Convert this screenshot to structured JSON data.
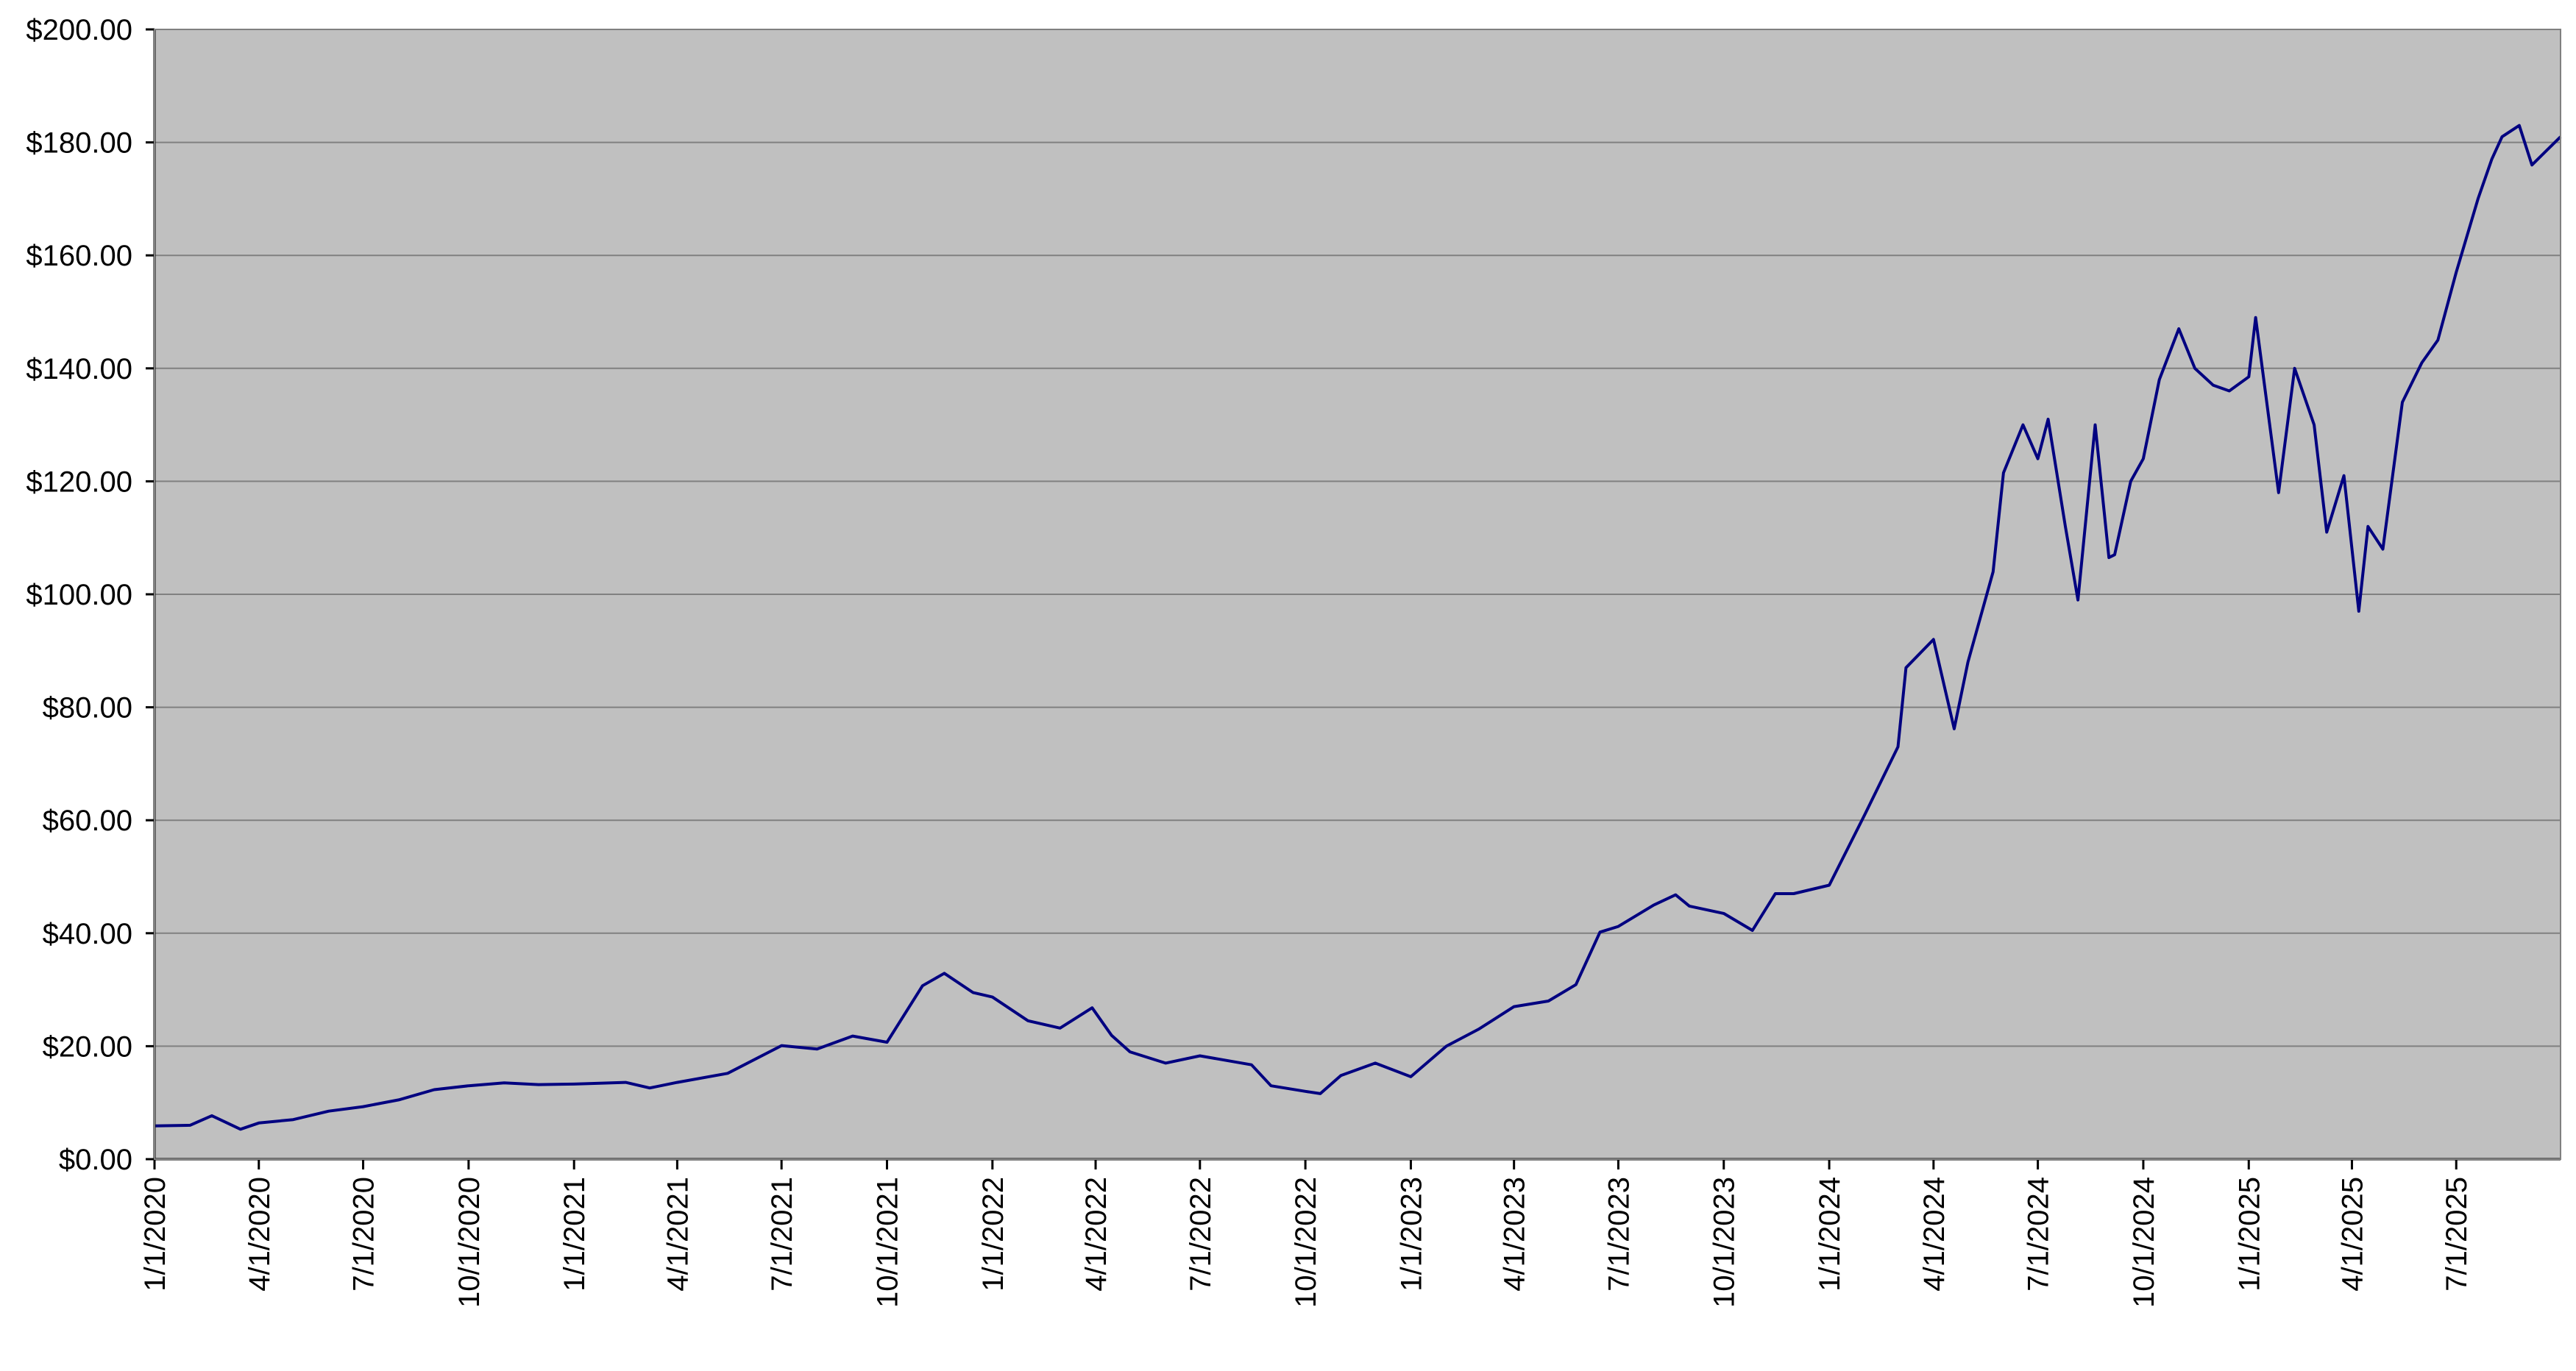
{
  "chart_data": {
    "type": "line",
    "title": "",
    "xlabel": "",
    "ylabel": "",
    "ylim": [
      0,
      200
    ],
    "xlim": [
      "2020-01-01",
      "2025-09-30"
    ],
    "grid": true,
    "legend": "none",
    "y_ticks": [
      0,
      20,
      40,
      60,
      80,
      100,
      120,
      140,
      160,
      180,
      200
    ],
    "y_tick_labels": [
      "$0.00",
      "$20.00",
      "$40.00",
      "$60.00",
      "$80.00",
      "$100.00",
      "$120.00",
      "$140.00",
      "$160.00",
      "$180.00",
      "$200.00"
    ],
    "x_tick_dates": [
      "2020-01-01",
      "2020-04-01",
      "2020-07-01",
      "2020-10-01",
      "2021-01-01",
      "2021-04-01",
      "2021-07-01",
      "2021-10-01",
      "2022-01-01",
      "2022-04-01",
      "2022-07-01",
      "2022-10-01",
      "2023-01-01",
      "2023-04-01",
      "2023-07-01",
      "2023-10-01",
      "2024-01-01",
      "2024-04-01",
      "2024-07-01",
      "2024-10-01",
      "2025-01-01",
      "2025-04-01",
      "2025-07-01"
    ],
    "x_tick_labels": [
      "1/1/2020",
      "4/1/2020",
      "7/1/2020",
      "10/1/2020",
      "1/1/2021",
      "4/1/2021",
      "7/1/2021",
      "10/1/2021",
      "1/1/2022",
      "4/1/2022",
      "7/1/2022",
      "10/1/2022",
      "1/1/2023",
      "4/1/2023",
      "7/1/2023",
      "10/1/2023",
      "1/1/2024",
      "4/1/2024",
      "7/1/2024",
      "10/1/2024",
      "1/1/2025",
      "4/1/2025",
      "7/1/2025"
    ],
    "colors": {
      "plot_background": "#c0c0c0",
      "line": "#000080",
      "grid": "#808080"
    },
    "series": [
      {
        "x": [
          "2020-01-01",
          "2020-02-01",
          "2020-02-20",
          "2020-03-16",
          "2020-04-01",
          "2020-05-01",
          "2020-06-01",
          "2020-07-01",
          "2020-08-01",
          "2020-09-01",
          "2020-10-01",
          "2020-11-01",
          "2020-12-01",
          "2021-01-01",
          "2021-02-15",
          "2021-03-08",
          "2021-04-01",
          "2021-05-15",
          "2021-07-01",
          "2021-08-01",
          "2021-09-01",
          "2021-10-01",
          "2021-11-01",
          "2021-11-20",
          "2021-12-15",
          "2022-01-01",
          "2022-02-01",
          "2022-03-01",
          "2022-03-29",
          "2022-04-15",
          "2022-05-01",
          "2022-06-01",
          "2022-07-01",
          "2022-08-15",
          "2022-09-01",
          "2022-10-01",
          "2022-10-14",
          "2022-11-01",
          "2022-12-01",
          "2023-01-01",
          "2023-02-01",
          "2023-03-01",
          "2023-04-01",
          "2023-05-01",
          "2023-05-25",
          "2023-06-15",
          "2023-07-01",
          "2023-08-01",
          "2023-08-20",
          "2023-09-01",
          "2023-10-01",
          "2023-10-26",
          "2023-11-15",
          "2023-12-01",
          "2024-01-01",
          "2024-02-01",
          "2024-03-01",
          "2024-03-08",
          "2024-04-01",
          "2024-04-19",
          "2024-05-01",
          "2024-05-23",
          "2024-06-01",
          "2024-06-18",
          "2024-07-01",
          "2024-07-10",
          "2024-07-25",
          "2024-08-05",
          "2024-08-20",
          "2024-09-01",
          "2024-09-06",
          "2024-09-20",
          "2024-10-01",
          "2024-10-15",
          "2024-11-01",
          "2024-11-15",
          "2024-12-01",
          "2024-12-15",
          "2025-01-01",
          "2025-01-07",
          "2025-01-27",
          "2025-02-10",
          "2025-02-27",
          "2025-03-10",
          "2025-03-25",
          "2025-04-07",
          "2025-04-15",
          "2025-04-28",
          "2025-05-15",
          "2025-06-01",
          "2025-06-15",
          "2025-07-01",
          "2025-07-20",
          "2025-08-01",
          "2025-08-10",
          "2025-08-25",
          "2025-09-05",
          "2025-09-15",
          "2025-09-30"
        ],
        "y": [
          5.9,
          6.0,
          7.7,
          5.3,
          6.4,
          7.0,
          8.5,
          9.3,
          10.5,
          12.3,
          13.0,
          13.5,
          13.2,
          13.3,
          13.6,
          12.6,
          13.6,
          15.2,
          20.1,
          19.5,
          21.8,
          20.7,
          30.7,
          32.9,
          29.5,
          28.7,
          24.5,
          23.2,
          26.8,
          21.9,
          19.0,
          17.0,
          18.3,
          16.7,
          13.0,
          12.0,
          11.6,
          14.8,
          17.0,
          14.6,
          20.0,
          23.0,
          27.0,
          28.0,
          30.9,
          40.2,
          41.2,
          45.0,
          46.8,
          44.8,
          43.5,
          40.5,
          47.0,
          47.0,
          48.5,
          61.0,
          73.0,
          87.0,
          92.0,
          76.2,
          88.0,
          104.0,
          121.5,
          130.0,
          124.0,
          131.0,
          112.0,
          99.0,
          130.0,
          106.5,
          107.0,
          120.0,
          124.0,
          138.0,
          147.0,
          140.0,
          137.0,
          136.0,
          138.5,
          149.0,
          118.0,
          140.0,
          130.0,
          111.0,
          121.0,
          97.0,
          112.0,
          108.0,
          134.0,
          141.0,
          145.0,
          157.0,
          170.0,
          177.0,
          181.0,
          183.0,
          176.0,
          178.0,
          181.0
        ]
      }
    ]
  }
}
